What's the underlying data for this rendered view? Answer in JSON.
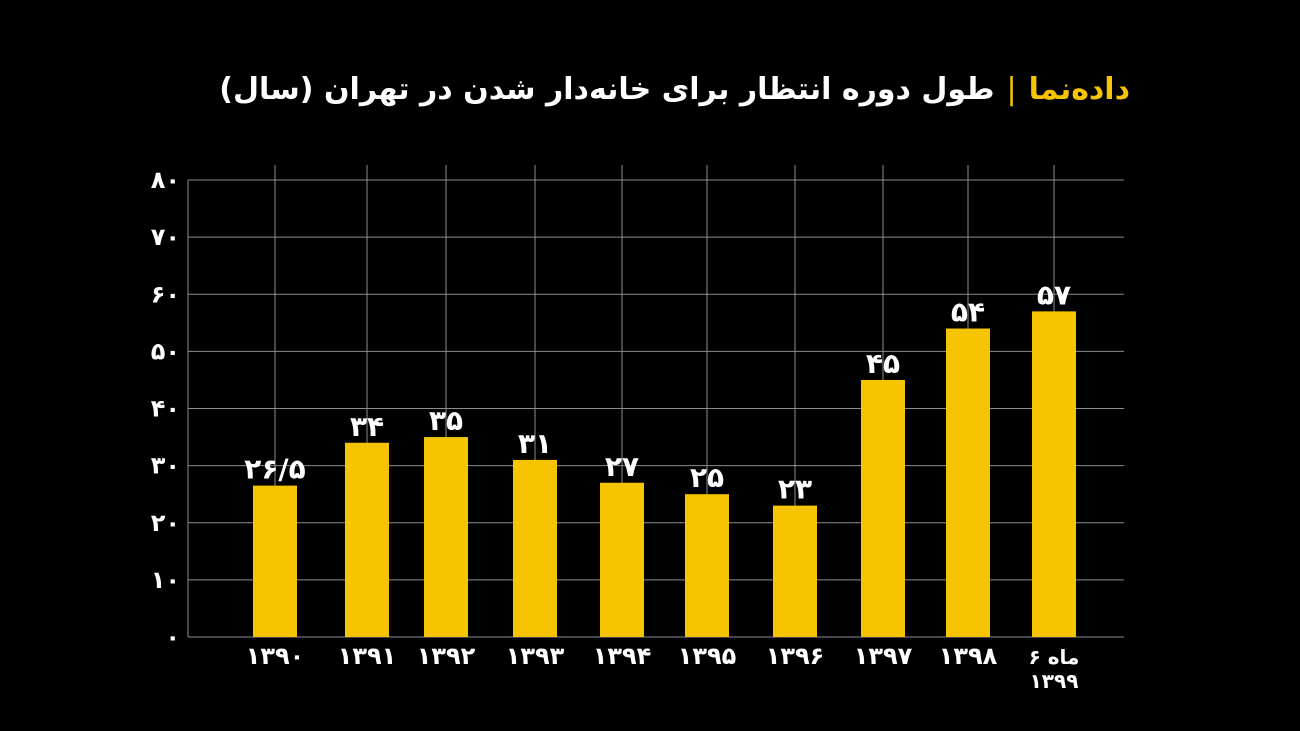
{
  "header": {
    "brand": "داده‌نما",
    "divider": "|",
    "title": "طول دوره انتظار برای خانه‌دار شدن در تهران (سال)"
  },
  "chart_data": {
    "type": "bar",
    "title": "طول دوره انتظار برای خانه‌دار شدن در تهران (سال)",
    "xlabel": "",
    "ylabel": "",
    "categories": [
      "۱۳۹۰",
      "۱۳۹۱",
      "۱۳۹۲",
      "۱۳۹۳",
      "۱۳۹۴",
      "۱۳۹۵",
      "۱۳۹۶",
      "۱۳۹۷",
      "۱۳۹۸",
      "۶ ماه\n۱۳۹۹"
    ],
    "values": [
      26.5,
      34,
      35,
      31,
      27,
      25,
      23,
      45,
      54,
      57
    ],
    "value_labels": [
      "۲۶/۵",
      "۳۴",
      "۳۵",
      "۳۱",
      "۲۷",
      "۲۵",
      "۲۳",
      "۴۵",
      "۵۴",
      "۵۷"
    ],
    "ylim": [
      0,
      80
    ],
    "yticks": [
      0,
      10,
      20,
      30,
      40,
      50,
      60,
      70,
      80
    ],
    "ytick_labels": [
      "۰",
      "۱۰",
      "۲۰",
      "۳۰",
      "۴۰",
      "۵۰",
      "۶۰",
      "۷۰",
      "۸۰"
    ],
    "grid": true,
    "legend": "none",
    "colors": {
      "bar": "#f6c400",
      "grid": "#8c8c8c",
      "text": "#ffffff",
      "background": "#000000"
    }
  }
}
